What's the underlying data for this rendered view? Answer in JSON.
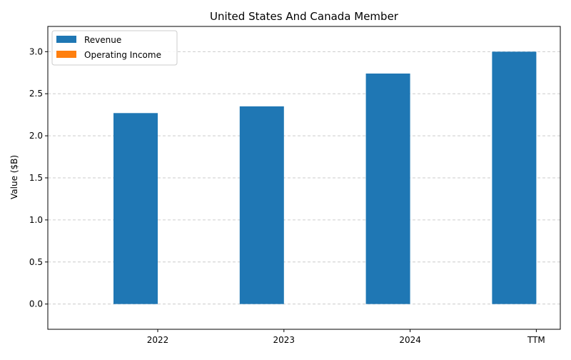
{
  "chart_data": {
    "type": "bar",
    "title": "United States And Canada Member",
    "xlabel": "",
    "ylabel": "Value ($B)",
    "categories": [
      "2022",
      "2023",
      "2024",
      "TTM"
    ],
    "series": [
      {
        "name": "Revenue",
        "values": [
          2.27,
          2.35,
          2.74,
          3.0
        ],
        "color": "#1f77b4"
      },
      {
        "name": "Operating Income",
        "values": [
          0,
          0,
          0,
          0
        ],
        "color": "#ff7f0e"
      }
    ],
    "ylim": [
      -0.3,
      3.3
    ],
    "yticks": [
      0.0,
      0.5,
      1.0,
      1.5,
      2.0,
      2.5,
      3.0
    ],
    "ytick_labels": [
      "0.0",
      "0.5",
      "1.0",
      "1.5",
      "2.0",
      "2.5",
      "3.0"
    ],
    "grid": true,
    "legend_position": "top-left"
  }
}
